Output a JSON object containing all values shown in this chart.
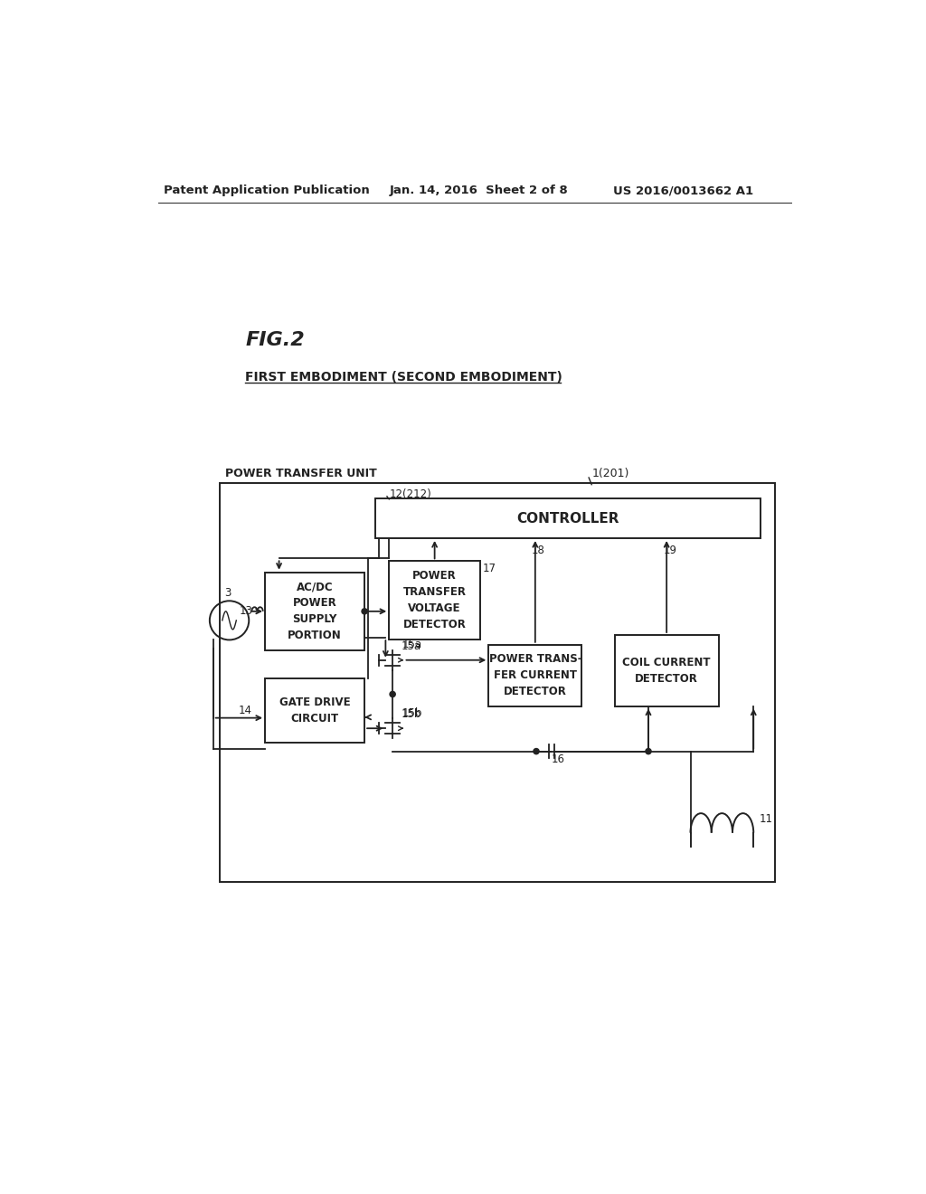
{
  "background_color": "#ffffff",
  "header_left": "Patent Application Publication",
  "header_center": "Jan. 14, 2016  Sheet 2 of 8",
  "header_right": "US 2016/0013662 A1",
  "fig_label": "FIG.2",
  "subtitle": "FIRST EMBODIMENT (SECOND EMBODIMENT)",
  "outer_box_label": "POWER TRANSFER UNIT",
  "outer_box_label2": "1(201)",
  "controller_label": "CONTROLLER",
  "controller_sublabel": "12(212)",
  "acdc_label": "AC/DC\nPOWER\nSUPPLY\nPORTION",
  "gatedrive_label": "GATE DRIVE\nCIRCUIT",
  "ptvd_label": "POWER\nTRANSFER\nVOLTAGE\nDETECTOR",
  "ptcd_label": "POWER TRANS-\nFER CURRENT\nDETECTOR",
  "ccdet_label": "COIL CURRENT\nDETECTOR",
  "num_3": "3",
  "num_11": "11",
  "num_13": "13",
  "num_14": "14",
  "num_15a": "15a",
  "num_15b": "15b",
  "num_16": "16",
  "num_17": "17",
  "num_18": "18",
  "num_19": "19"
}
